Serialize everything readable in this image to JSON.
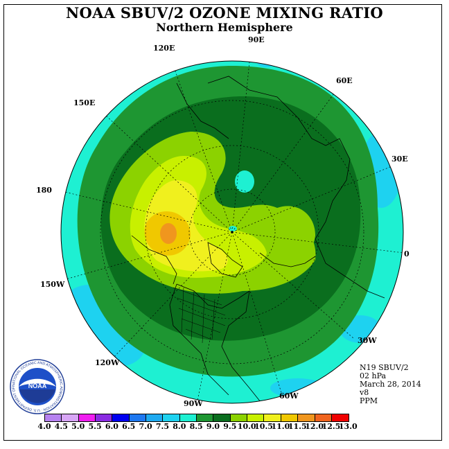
{
  "title": "NOAA SBUV/2 OZONE MIXING RATIO",
  "subtitle": "Northern Hemisphere",
  "longitude_labels": [
    "120E",
    "90E",
    "60E",
    "150E",
    "30E",
    "180",
    "0",
    "150W",
    "30W",
    "120W",
    "60W",
    "90W"
  ],
  "info": {
    "satellite": "N19 SBUV/2",
    "level": "02 hPa",
    "date": "March 28, 2014",
    "version": "v8",
    "units": "PPM"
  },
  "colorbar": {
    "ticks": [
      "4.0",
      "4.5",
      "5.0",
      "5.5",
      "6.0",
      "6.5",
      "7.0",
      "7.5",
      "8.0",
      "8.5",
      "9.0",
      "9.5",
      "10.0",
      "10.5",
      "11.0",
      "11.5",
      "12.0",
      "12.5",
      "13.0"
    ],
    "colors": [
      "#b682f0",
      "#d8a6f6",
      "#f01ef0",
      "#8a2be2",
      "#0000f0",
      "#1e78f0",
      "#1eaaf0",
      "#1ed2f0",
      "#1ef0d2",
      "#1e9632",
      "#0a6e1e",
      "#8cd200",
      "#c8f000",
      "#f0f01e",
      "#f0c800",
      "#f0961e",
      "#f0641e",
      "#f00000",
      "#8b5a32"
    ]
  },
  "logo": {
    "text": "NOAA",
    "ring_text": "NATIONAL OCEANIC AND ATMOSPHERIC ADMINISTRATION · U.S. DEPARTMENT OF COMMERCE"
  }
}
